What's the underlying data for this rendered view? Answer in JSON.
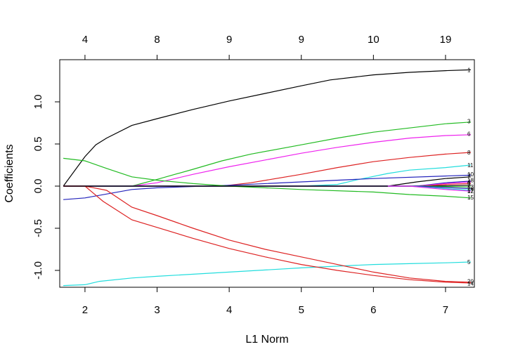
{
  "chart_data": {
    "type": "line",
    "xlabel": "L1 Norm",
    "ylabel": "Coefficients",
    "xlim": [
      1.65,
      7.4
    ],
    "ylim": [
      -1.2,
      1.5
    ],
    "x_ticks": [
      2,
      3,
      4,
      5,
      6,
      7
    ],
    "y_ticks": [
      -1.0,
      -0.5,
      0.0,
      0.5,
      1.0
    ],
    "x_tick_labels": [
      "2",
      "3",
      "4",
      "5",
      "6",
      "7"
    ],
    "y_tick_labels": [
      "-1.0",
      "-0.5",
      "0.0",
      "0.5",
      "1.0"
    ],
    "top_axis": {
      "ticks": [
        2,
        3,
        4,
        5,
        6,
        7
      ],
      "labels": [
        "4",
        "8",
        "9",
        "9",
        "10",
        "19"
      ]
    },
    "grid": false,
    "series": [
      {
        "name": "1",
        "color": "#000000",
        "x": [
          1.7,
          2.0,
          2.15,
          2.3,
          2.65,
          3.0,
          3.5,
          4.0,
          4.5,
          5.0,
          5.4,
          6.0,
          6.5,
          7.0,
          7.35
        ],
        "y": [
          0.0,
          0.35,
          0.49,
          0.57,
          0.72,
          0.8,
          0.91,
          1.01,
          1.1,
          1.19,
          1.26,
          1.32,
          1.35,
          1.37,
          1.38
        ]
      },
      {
        "name": "3",
        "color": "#22bb22",
        "x": [
          1.7,
          2.0,
          2.3,
          2.65,
          3.0,
          3.5,
          3.9,
          4.3,
          5.0,
          5.5,
          6.0,
          6.5,
          7.0,
          7.35
        ],
        "y": [
          0.0,
          0.0,
          0.0,
          0.0,
          0.08,
          0.2,
          0.3,
          0.38,
          0.49,
          0.57,
          0.64,
          0.69,
          0.74,
          0.76
        ]
      },
      {
        "name": "6",
        "color": "#ee22ee",
        "x": [
          1.7,
          2.0,
          2.65,
          3.0,
          3.5,
          4.0,
          4.5,
          5.0,
          5.5,
          6.0,
          6.5,
          7.0,
          7.35
        ],
        "y": [
          0.0,
          0.0,
          0.0,
          0.04,
          0.14,
          0.23,
          0.31,
          0.39,
          0.46,
          0.52,
          0.57,
          0.6,
          0.61
        ]
      },
      {
        "name": "8",
        "color": "#dd2222",
        "x": [
          1.7,
          2.0,
          3.0,
          3.9,
          4.3,
          5.0,
          5.5,
          6.0,
          6.5,
          7.0,
          7.35
        ],
        "y": [
          0.0,
          0.0,
          0.0,
          0.0,
          0.04,
          0.14,
          0.22,
          0.29,
          0.34,
          0.38,
          0.4
        ]
      },
      {
        "name": "11",
        "color": "#22dddd",
        "x": [
          1.7,
          2.0,
          3.0,
          4.0,
          5.0,
          5.5,
          5.8,
          6.2,
          6.5,
          7.0,
          7.35
        ],
        "y": [
          0.0,
          0.0,
          0.0,
          0.0,
          0.0,
          0.02,
          0.08,
          0.15,
          0.19,
          0.22,
          0.25
        ]
      },
      {
        "name": "10",
        "color": "#2222bb",
        "x": [
          1.7,
          2.0,
          2.65,
          3.0,
          4.0,
          5.0,
          6.0,
          7.0,
          7.35
        ],
        "y": [
          -0.16,
          -0.14,
          -0.04,
          -0.02,
          0.01,
          0.05,
          0.09,
          0.12,
          0.13
        ]
      },
      {
        "name": "7",
        "color": "#000000",
        "x": [
          1.7,
          6.2,
          6.6,
          7.0,
          7.35
        ],
        "y": [
          0.0,
          0.0,
          0.05,
          0.09,
          0.11
        ]
      },
      {
        "name": "18",
        "color": "#2222bb",
        "x": [
          1.7,
          6.6,
          7.0,
          7.35
        ],
        "y": [
          0.0,
          0.0,
          0.04,
          0.06
        ]
      },
      {
        "name": "4",
        "color": "#ee22ee",
        "x": [
          1.7,
          6.6,
          7.0,
          7.35
        ],
        "y": [
          0.0,
          0.0,
          0.03,
          0.05
        ]
      },
      {
        "name": "9",
        "color": "#dd2222",
        "x": [
          1.7,
          6.7,
          7.0,
          7.35
        ],
        "y": [
          0.0,
          0.0,
          0.02,
          0.03
        ]
      },
      {
        "name": "2",
        "color": "#000000",
        "x": [
          1.7,
          6.8,
          7.35
        ],
        "y": [
          0.0,
          0.0,
          0.01
        ]
      },
      {
        "name": "13",
        "color": "#22bb22",
        "x": [
          1.7,
          6.7,
          7.35
        ],
        "y": [
          0.0,
          0.0,
          -0.01
        ]
      },
      {
        "name": "16",
        "color": "#2222bb",
        "x": [
          1.7,
          6.6,
          7.35
        ],
        "y": [
          0.0,
          0.0,
          -0.03
        ]
      },
      {
        "name": "17",
        "color": "#22dddd",
        "x": [
          1.7,
          6.5,
          7.0,
          7.35
        ],
        "y": [
          0.0,
          0.0,
          -0.03,
          -0.05
        ]
      },
      {
        "name": "12",
        "color": "#ee22ee",
        "x": [
          1.7,
          6.5,
          7.0,
          7.35
        ],
        "y": [
          0.0,
          0.0,
          -0.04,
          -0.06
        ]
      },
      {
        "name": "15",
        "color": "#22bb22",
        "x": [
          1.7,
          2.0,
          2.3,
          2.65,
          3.0,
          3.5,
          4.0,
          5.0,
          6.0,
          6.5,
          7.0,
          7.35
        ],
        "y": [
          0.33,
          0.3,
          0.21,
          0.11,
          0.07,
          0.03,
          0.0,
          -0.04,
          -0.07,
          -0.1,
          -0.12,
          -0.14
        ]
      },
      {
        "name": "5",
        "color": "#22dddd",
        "x": [
          1.7,
          2.0,
          2.2,
          2.65,
          3.0,
          4.0,
          5.0,
          6.0,
          6.5,
          7.0,
          7.35
        ],
        "y": [
          -1.18,
          -1.17,
          -1.13,
          -1.09,
          -1.07,
          -1.02,
          -0.97,
          -0.93,
          -0.92,
          -0.91,
          -0.9
        ]
      },
      {
        "name": "20",
        "color": "#dd2222",
        "x": [
          1.7,
          2.0,
          2.3,
          2.65,
          3.0,
          3.5,
          4.0,
          4.5,
          5.0,
          5.5,
          6.0,
          6.5,
          7.0,
          7.35
        ],
        "y": [
          0.0,
          0.0,
          -0.05,
          -0.25,
          -0.35,
          -0.5,
          -0.64,
          -0.75,
          -0.84,
          -0.93,
          -1.02,
          -1.09,
          -1.13,
          -1.14
        ]
      },
      {
        "name": "14",
        "color": "#dd2222",
        "x": [
          1.7,
          2.0,
          2.25,
          2.65,
          3.0,
          3.5,
          4.0,
          4.5,
          5.0,
          5.5,
          6.0,
          6.5,
          7.0,
          7.35
        ],
        "y": [
          0.0,
          0.0,
          -0.18,
          -0.4,
          -0.49,
          -0.62,
          -0.74,
          -0.84,
          -0.93,
          -1.0,
          -1.06,
          -1.11,
          -1.14,
          -1.15
        ]
      }
    ],
    "end_labels": [
      {
        "text": "1",
        "y": 1.38
      },
      {
        "text": "3",
        "y": 0.77
      },
      {
        "text": "6",
        "y": 0.62
      },
      {
        "text": "8",
        "y": 0.4
      },
      {
        "text": "11",
        "y": 0.25
      },
      {
        "text": "10",
        "y": 0.14
      },
      {
        "text": "7",
        "y": 0.12
      },
      {
        "text": "18",
        "y": 0.07
      },
      {
        "text": "4",
        "y": 0.055
      },
      {
        "text": "9",
        "y": 0.03
      },
      {
        "text": "2",
        "y": 0.01
      },
      {
        "text": "13",
        "y": -0.01
      },
      {
        "text": "16",
        "y": -0.03
      },
      {
        "text": "17",
        "y": -0.05
      },
      {
        "text": "12",
        "y": -0.06
      },
      {
        "text": "15",
        "y": -0.135
      },
      {
        "text": "5",
        "y": -0.9
      },
      {
        "text": "20",
        "y": -1.13
      },
      {
        "text": "14",
        "y": -1.155
      }
    ]
  }
}
